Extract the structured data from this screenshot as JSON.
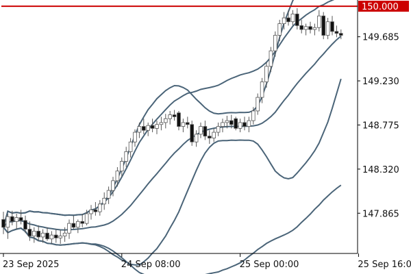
{
  "chart_data": {
    "type": "candlestick",
    "ylim": [
      147.45,
      150.05
    ],
    "y_ticks": [
      "150.000",
      "149.685",
      "149.230",
      "148.775",
      "148.320",
      "147.865"
    ],
    "x_ticks": [
      "23 Sep 2025",
      "24 Sep 08:00",
      "25 Sep 00:00",
      "25 Sep 16:00"
    ],
    "x_tick_bars": [
      0,
      27,
      54,
      81
    ],
    "level_line": {
      "value": 150.0,
      "label": "150.000",
      "color": "#cc0000"
    },
    "colors": {
      "up": "#ffffff",
      "down": "#111111",
      "wick": "#555555",
      "band": "#4a6478",
      "axis": "#000000"
    },
    "candles": [
      [
        147.8,
        147.88,
        147.65,
        147.72
      ],
      [
        147.72,
        147.86,
        147.6,
        147.83
      ],
      [
        147.83,
        147.89,
        147.74,
        147.78
      ],
      [
        147.78,
        147.86,
        147.7,
        147.82
      ],
      [
        147.82,
        147.9,
        147.75,
        147.79
      ],
      [
        147.79,
        147.84,
        147.66,
        147.7
      ],
      [
        147.7,
        147.78,
        147.58,
        147.63
      ],
      [
        147.63,
        147.72,
        147.56,
        147.68
      ],
      [
        147.68,
        147.74,
        147.58,
        147.62
      ],
      [
        147.62,
        147.7,
        147.56,
        147.66
      ],
      [
        147.66,
        147.72,
        147.58,
        147.6
      ],
      [
        147.6,
        147.68,
        147.55,
        147.64
      ],
      [
        147.64,
        147.7,
        147.56,
        147.61
      ],
      [
        147.61,
        147.69,
        147.55,
        147.63
      ],
      [
        147.63,
        147.72,
        147.57,
        147.66
      ],
      [
        147.66,
        147.8,
        147.6,
        147.76
      ],
      [
        147.76,
        147.84,
        147.7,
        147.72
      ],
      [
        147.72,
        147.8,
        147.66,
        147.78
      ],
      [
        147.78,
        147.86,
        147.72,
        147.76
      ],
      [
        147.76,
        147.9,
        147.74,
        147.86
      ],
      [
        147.86,
        147.95,
        147.8,
        147.9
      ],
      [
        147.9,
        147.98,
        147.84,
        147.88
      ],
      [
        147.88,
        148.0,
        147.84,
        147.96
      ],
      [
        147.96,
        148.08,
        147.9,
        148.02
      ],
      [
        148.02,
        148.14,
        147.96,
        148.1
      ],
      [
        148.1,
        148.24,
        148.04,
        148.2
      ],
      [
        148.2,
        148.34,
        148.14,
        148.3
      ],
      [
        148.3,
        148.44,
        148.24,
        148.4
      ],
      [
        148.4,
        148.55,
        148.34,
        148.5
      ],
      [
        148.5,
        148.64,
        148.44,
        148.6
      ],
      [
        148.6,
        148.73,
        148.55,
        148.7
      ],
      [
        148.7,
        148.8,
        148.64,
        148.76
      ],
      [
        148.76,
        148.84,
        148.68,
        148.72
      ],
      [
        148.72,
        148.8,
        148.66,
        148.77
      ],
      [
        148.77,
        148.84,
        148.7,
        148.74
      ],
      [
        148.74,
        148.82,
        148.68,
        148.78
      ],
      [
        148.78,
        148.86,
        148.72,
        148.8
      ],
      [
        148.8,
        148.89,
        148.74,
        148.84
      ],
      [
        148.84,
        148.92,
        148.78,
        148.88
      ],
      [
        148.88,
        148.93,
        148.82,
        148.86
      ],
      [
        148.9,
        148.92,
        148.72,
        148.76
      ],
      [
        148.76,
        148.84,
        148.7,
        148.8
      ],
      [
        148.8,
        148.86,
        148.74,
        148.78
      ],
      [
        148.78,
        148.82,
        148.56,
        148.6
      ],
      [
        148.6,
        148.72,
        148.55,
        148.68
      ],
      [
        148.68,
        148.8,
        148.64,
        148.76
      ],
      [
        148.76,
        148.82,
        148.62,
        148.66
      ],
      [
        148.66,
        148.72,
        148.58,
        148.64
      ],
      [
        148.64,
        148.74,
        148.6,
        148.7
      ],
      [
        148.7,
        148.8,
        148.66,
        148.76
      ],
      [
        148.76,
        148.84,
        148.7,
        148.8
      ],
      [
        148.8,
        148.87,
        148.74,
        148.82
      ],
      [
        148.82,
        148.88,
        148.74,
        148.78
      ],
      [
        148.84,
        148.86,
        148.72,
        148.74
      ],
      [
        148.74,
        148.84,
        148.7,
        148.8
      ],
      [
        148.8,
        148.86,
        148.72,
        148.76
      ],
      [
        148.76,
        148.86,
        148.7,
        148.82
      ],
      [
        148.82,
        148.96,
        148.78,
        148.92
      ],
      [
        148.92,
        149.1,
        148.88,
        149.06
      ],
      [
        149.06,
        149.26,
        149.0,
        149.22
      ],
      [
        149.22,
        149.42,
        149.16,
        149.38
      ],
      [
        149.38,
        149.58,
        149.32,
        149.54
      ],
      [
        149.54,
        149.74,
        149.48,
        149.7
      ],
      [
        149.7,
        149.86,
        149.64,
        149.82
      ],
      [
        149.82,
        149.94,
        149.76,
        149.88
      ],
      [
        149.88,
        149.96,
        149.8,
        149.84
      ],
      [
        149.84,
        149.96,
        149.8,
        149.92
      ],
      [
        149.92,
        149.98,
        149.76,
        149.8
      ],
      [
        149.8,
        149.86,
        149.72,
        149.76
      ],
      [
        149.76,
        149.82,
        149.7,
        149.79
      ],
      [
        149.79,
        149.84,
        149.72,
        149.76
      ],
      [
        149.76,
        149.82,
        149.7,
        149.78
      ],
      [
        149.78,
        149.96,
        149.74,
        149.9
      ],
      [
        149.9,
        149.94,
        149.66,
        149.7
      ],
      [
        149.7,
        149.88,
        149.66,
        149.84
      ],
      [
        149.84,
        149.9,
        149.7,
        149.74
      ],
      [
        149.74,
        149.8,
        149.68,
        149.72
      ],
      [
        149.72,
        149.76,
        149.66,
        149.7
      ]
    ]
  }
}
